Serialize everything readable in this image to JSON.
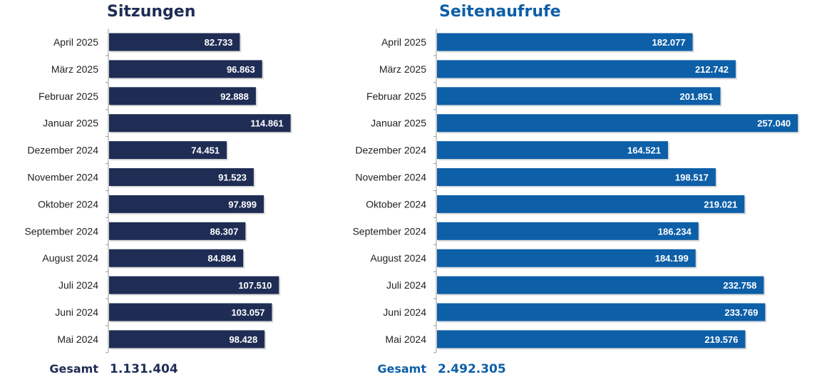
{
  "colors": {
    "sessions": "#1f2d55",
    "views": "#0d5fa8"
  },
  "chart_data": [
    {
      "type": "bar",
      "orientation": "horizontal",
      "title": "Sitzungen",
      "categories": [
        "April 2025",
        "März 2025",
        "Februar 2025",
        "Januar 2025",
        "Dezember 2024",
        "November 2024",
        "Oktober 2024",
        "September 2024",
        "August 2024",
        "Juli 2024",
        "Juni 2024",
        "Mai 2024"
      ],
      "values": [
        82733,
        96863,
        92888,
        114861,
        74451,
        91523,
        97899,
        86307,
        84884,
        107510,
        103057,
        98428
      ],
      "value_labels": [
        "82.733",
        "96.863",
        "92.888",
        "114.861",
        "74.451",
        "91.523",
        "97.899",
        "86.307",
        "84.884",
        "107.510",
        "103.057",
        "98.428"
      ],
      "xlim": [
        0,
        120000
      ],
      "total_label": "Gesamt",
      "total_value": "1.131.404"
    },
    {
      "type": "bar",
      "orientation": "horizontal",
      "title": "Seitenaufrufe",
      "categories": [
        "April 2025",
        "März 2025",
        "Februar 2025",
        "Januar 2025",
        "Dezember 2024",
        "November 2024",
        "Oktober 2024",
        "September 2024",
        "August 2024",
        "Juli 2024",
        "Juni 2024",
        "Mai 2024"
      ],
      "values": [
        182077,
        212742,
        201851,
        257040,
        164521,
        198517,
        219021,
        186234,
        184199,
        232758,
        233769,
        219576
      ],
      "value_labels": [
        "182.077",
        "212.742",
        "201.851",
        "257.040",
        "164.521",
        "198.517",
        "219.021",
        "186.234",
        "184.199",
        "232.758",
        "233.769",
        "219.576"
      ],
      "xlim": [
        0,
        260000
      ],
      "total_label": "Gesamt",
      "total_value": "2.492.305"
    }
  ]
}
